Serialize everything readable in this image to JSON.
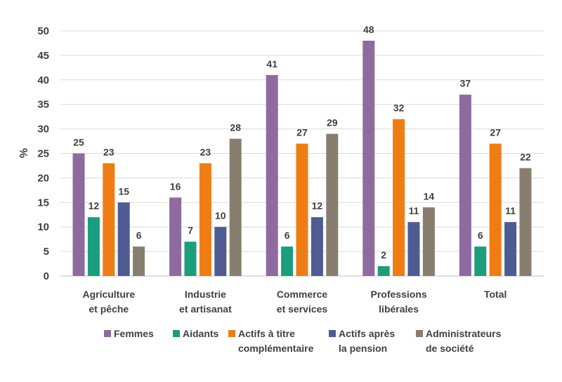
{
  "chart_data": {
    "type": "bar",
    "title": "",
    "xlabel": "",
    "ylabel": "%",
    "ylim": [
      0,
      50
    ],
    "yticks": [
      0,
      5,
      10,
      15,
      20,
      25,
      30,
      35,
      40,
      45,
      50
    ],
    "grid": true,
    "legend_position": "bottom",
    "categories": [
      [
        "Agriculture",
        "et pêche"
      ],
      [
        "Industrie",
        "et artisanat"
      ],
      [
        "Commerce",
        "et services"
      ],
      [
        "Professions",
        "libérales"
      ],
      [
        "Total"
      ]
    ],
    "series": [
      {
        "name": [
          "Femmes"
        ],
        "color": "#8e6aa0",
        "values": [
          25,
          16,
          41,
          48,
          37
        ]
      },
      {
        "name": [
          "Aidants"
        ],
        "color": "#1a9e7d",
        "values": [
          12,
          7,
          6,
          2,
          6
        ]
      },
      {
        "name": [
          "Actifs à titre",
          "complémentaire"
        ],
        "color": "#f07c14",
        "values": [
          23,
          23,
          27,
          32,
          27
        ]
      },
      {
        "name": [
          "Actifs après",
          "la pension"
        ],
        "color": "#4f5b93",
        "values": [
          15,
          10,
          12,
          11,
          11
        ]
      },
      {
        "name": [
          "Administrateurs",
          "de société"
        ],
        "color": "#877e70",
        "values": [
          6,
          28,
          29,
          14,
          22
        ]
      }
    ]
  }
}
